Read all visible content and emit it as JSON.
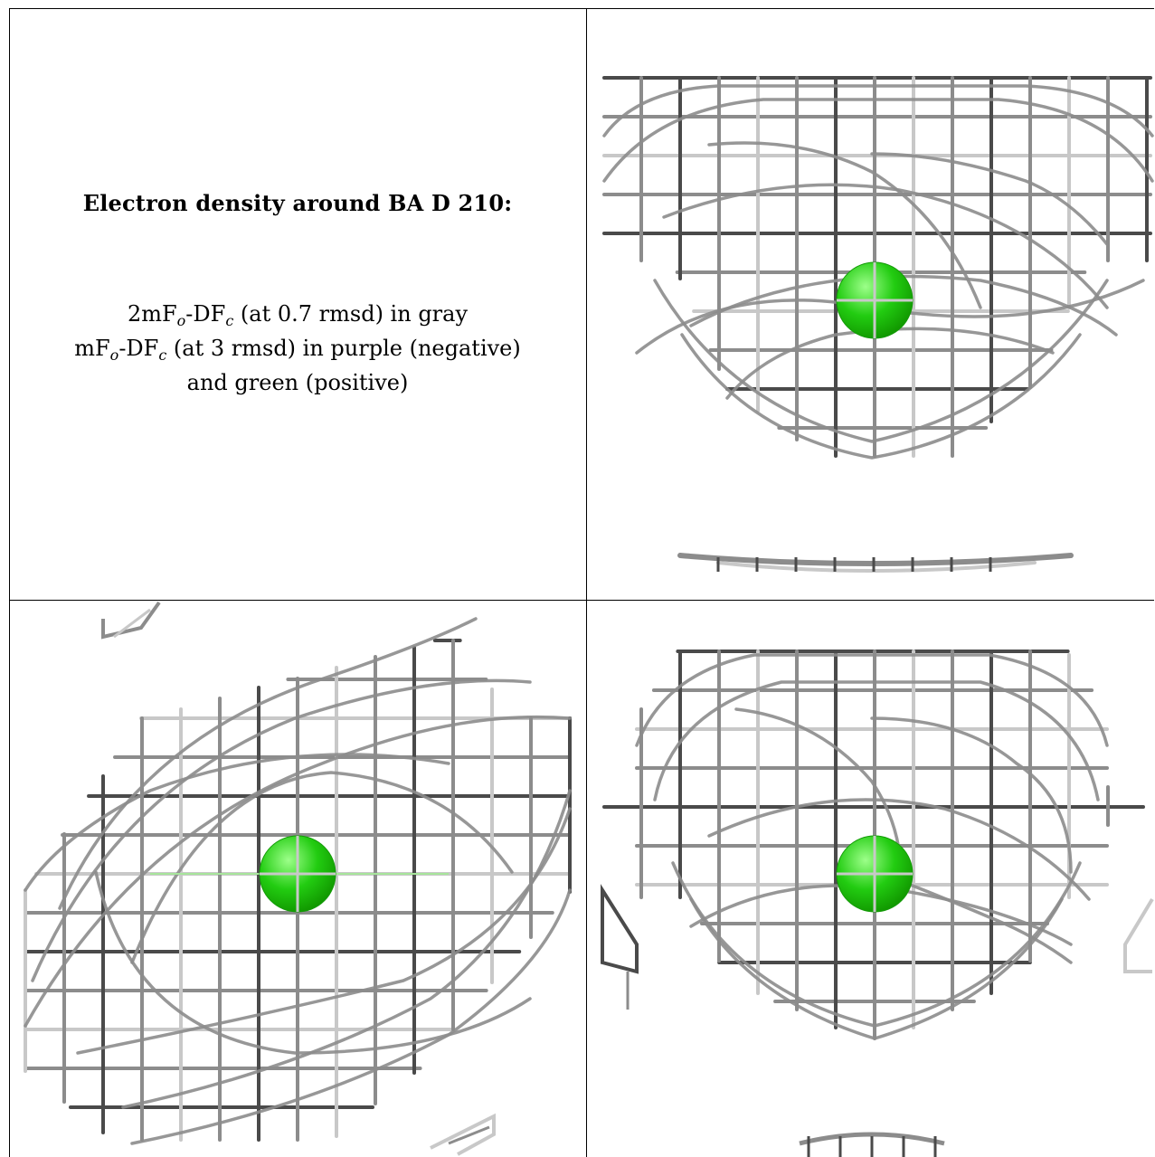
{
  "caption": {
    "title": "Electron density around BA D 210:",
    "line1": {
      "pre": "2mF",
      "sub1": "o",
      "mid": "-DF",
      "sub2": "c",
      "post": " (at 0.7 rmsd) in gray"
    },
    "line2": {
      "pre": "mF",
      "sub1": "o",
      "mid": "-DF",
      "sub2": "c",
      "post": " (at 3 rmsd) in purple (negative)"
    },
    "line3": "and green (positive)"
  },
  "colors": {
    "mesh_dark": "#4a4a4a",
    "mesh_mid": "#8c8c8c",
    "mesh_light": "#c8c8c8",
    "atom": "#22cc11",
    "atom_highlight": "#9dff8a",
    "frame": "#000000"
  },
  "panels": [
    {
      "id": "top-right",
      "atom": "green-sphere",
      "mesh": "gray-mesh"
    },
    {
      "id": "bottom-left",
      "atom": "green-sphere",
      "mesh": "gray-mesh"
    },
    {
      "id": "bottom-right",
      "atom": "green-sphere",
      "mesh": "gray-mesh"
    }
  ]
}
